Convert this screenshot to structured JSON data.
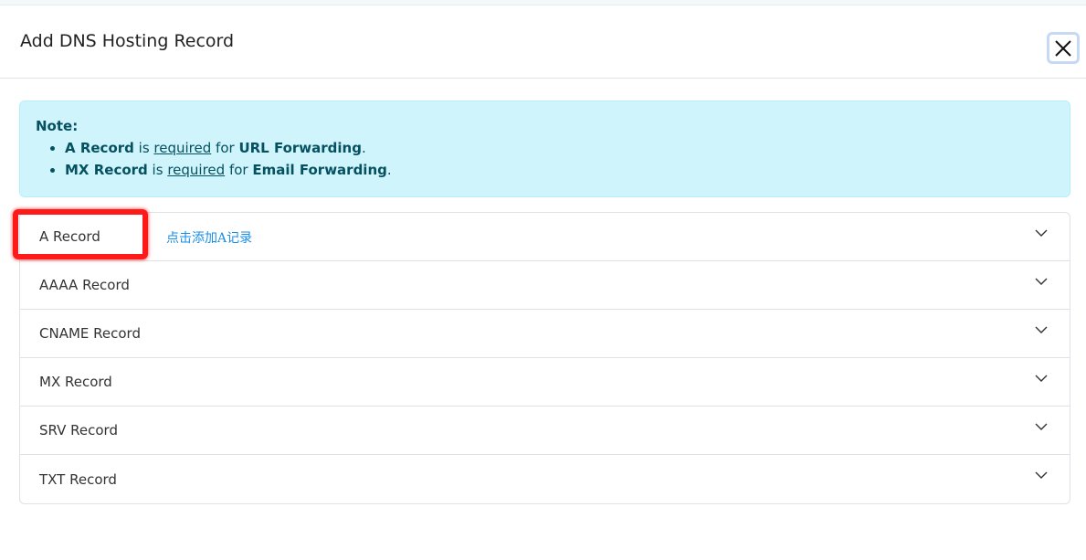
{
  "dialog": {
    "title": "Add DNS Hosting Record",
    "close_icon": "close-icon"
  },
  "note": {
    "heading": "Note:",
    "items": [
      {
        "record": "A Record",
        "is": " is ",
        "required": "required",
        "for": " for ",
        "target": "URL Forwarding",
        "end": "."
      },
      {
        "record": "MX Record",
        "is": " is ",
        "required": "required",
        "for": " for ",
        "target": "Email Forwarding",
        "end": "."
      }
    ],
    "colors": {
      "background": "#cff4fc",
      "text": "#055160"
    }
  },
  "records": [
    {
      "label": "A Record"
    },
    {
      "label": "AAAA Record"
    },
    {
      "label": "CNAME Record"
    },
    {
      "label": "MX Record"
    },
    {
      "label": "SRV Record"
    },
    {
      "label": "TXT Record"
    }
  ],
  "annotation": {
    "hint": "点击添加A记录",
    "highlight_color": "#ff1a1a",
    "hint_color": "#1a8fe8"
  }
}
